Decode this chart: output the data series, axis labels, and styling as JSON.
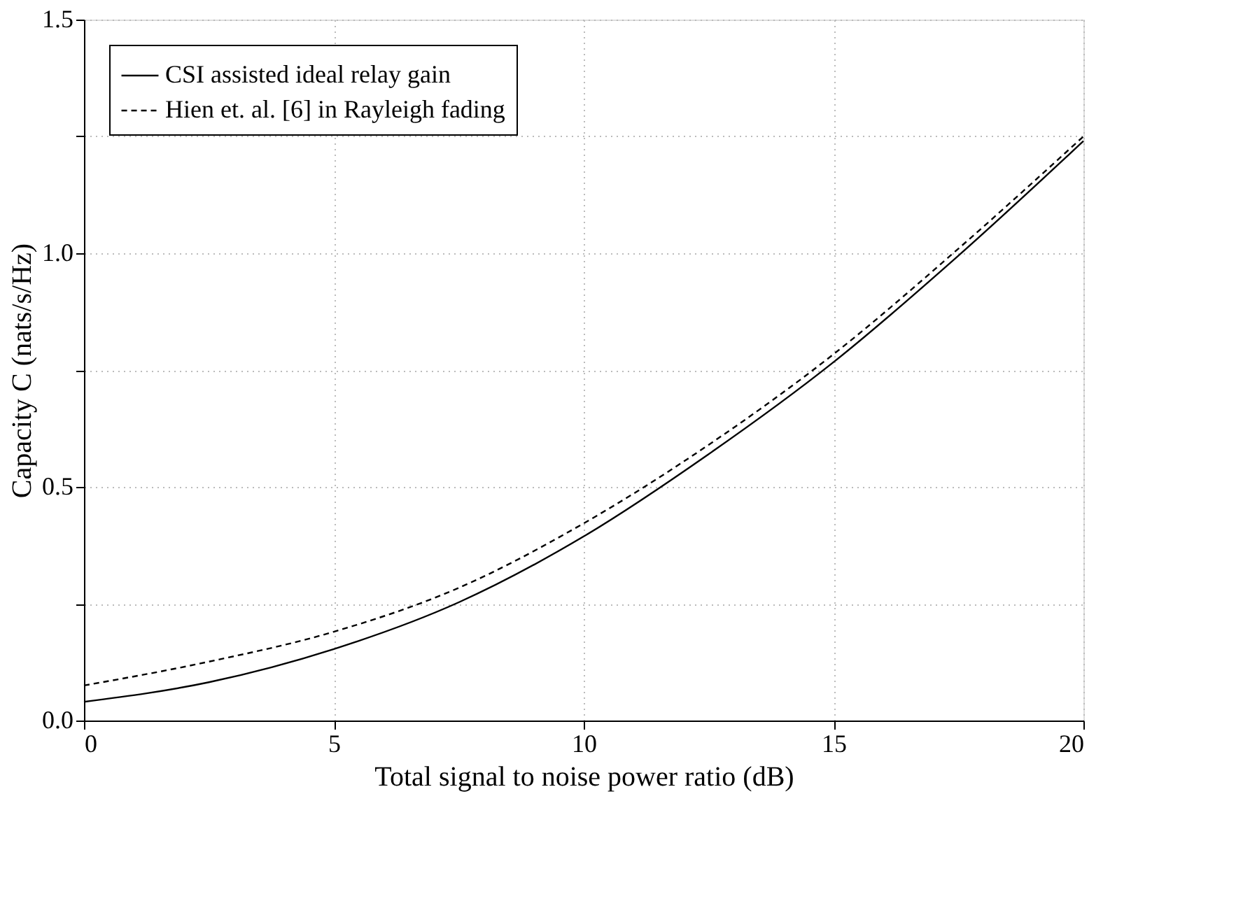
{
  "chart_data": {
    "type": "line",
    "xlabel": "Total signal to noise power ratio (dB)",
    "ylabel": "Capacity C (nats/s/Hz)",
    "x": [
      0,
      2.5,
      5,
      7.5,
      10,
      12.5,
      15,
      17.5,
      20
    ],
    "series": [
      {
        "name": "CSI assisted ideal relay gain",
        "color": "#000000",
        "line_style": "solid",
        "values": [
          0.04,
          0.082,
          0.153,
          0.253,
          0.394,
          0.57,
          0.767,
          0.995,
          1.24
        ]
      },
      {
        "name": "Hien et. al. [6] in Rayleigh fading",
        "color": "#000000",
        "line_style": "dashed",
        "values": [
          0.075,
          0.126,
          0.19,
          0.284,
          0.422,
          0.59,
          0.784,
          1.01,
          1.25
        ]
      }
    ],
    "xlim": [
      0,
      20
    ],
    "xticks": [
      0,
      5,
      10,
      15,
      20
    ],
    "ylim": [
      0,
      1.5
    ],
    "yticks": [
      {
        "value": 0,
        "label": "0.0"
      },
      {
        "value": 0.25,
        "label": null
      },
      0.5,
      {
        "value": 0.75,
        "label": null
      },
      {
        "value": 1,
        "label": "1.0"
      },
      {
        "value": 1.25,
        "label": null
      },
      1.5
    ],
    "grid": true,
    "legend": "top left",
    "marker": "none"
  }
}
